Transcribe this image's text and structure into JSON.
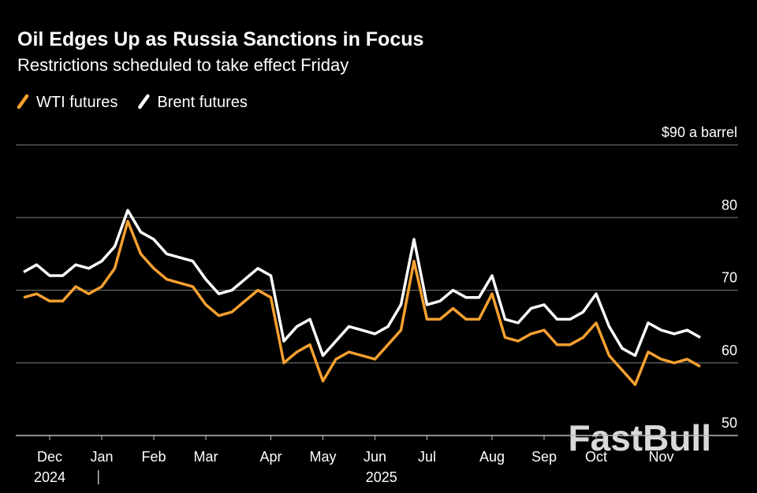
{
  "chart_data": {
    "type": "line",
    "title": "Oil Edges Up as Russia Sanctions in Focus",
    "subtitle": "Restrictions scheduled to take effect Friday",
    "categories": [
      null,
      null,
      "Dec",
      null,
      null,
      null,
      "Jan",
      null,
      null,
      null,
      "Feb",
      null,
      null,
      null,
      "Mar",
      null,
      null,
      null,
      null,
      "Apr",
      null,
      null,
      null,
      "May",
      null,
      null,
      null,
      "Jun",
      null,
      null,
      null,
      "Jul",
      null,
      null,
      null,
      null,
      "Aug",
      null,
      null,
      null,
      "Sep",
      null,
      null,
      null,
      "Oct",
      null,
      null,
      null,
      null,
      "Nov",
      null,
      null,
      null
    ],
    "year_groups": [
      {
        "label": "2024",
        "months": [
          "Dec"
        ]
      },
      {
        "label": "2025",
        "months": [
          "Jan",
          "Feb",
          "Mar",
          "Apr",
          "May",
          "Jun",
          "Jul",
          "Aug",
          "Sep",
          "Oct",
          "Nov"
        ]
      }
    ],
    "series": [
      {
        "name": "WTI futures",
        "color": "#f5a030",
        "values": [
          69,
          69.5,
          68.5,
          68.5,
          70.5,
          69.5,
          70.5,
          73,
          79.5,
          75,
          73,
          71.5,
          71,
          70.5,
          68,
          66.5,
          67,
          68.5,
          70,
          69,
          60,
          61.5,
          62.5,
          57.5,
          60.5,
          61.5,
          61,
          60.5,
          62.5,
          64.5,
          74,
          66,
          66,
          67.5,
          66,
          66,
          69.5,
          63.5,
          63,
          64,
          64.5,
          62.5,
          62.5,
          63.5,
          65.5,
          61,
          59,
          57,
          61.5,
          60.5,
          60,
          60.5,
          59.5
        ]
      },
      {
        "name": "Brent futures",
        "color": "#ffffff",
        "values": [
          72.5,
          73.5,
          72,
          72,
          73.5,
          73,
          74,
          76,
          81,
          78,
          77,
          75,
          74.5,
          74,
          71.5,
          69.5,
          70,
          71.5,
          73,
          72,
          63,
          65,
          66,
          61,
          63,
          65,
          64.5,
          64,
          65,
          68,
          77,
          68,
          68.5,
          70,
          69,
          69,
          72,
          66,
          65.5,
          67.5,
          68,
          66,
          66,
          67,
          69.5,
          65,
          62,
          61,
          65.5,
          64.5,
          64,
          64.5,
          63.5
        ]
      }
    ],
    "ylim": [
      50,
      90
    ],
    "yticks": [
      50,
      60,
      70,
      80,
      {
        "value": 90,
        "label": "$90 a barrel"
      }
    ],
    "grid": true,
    "watermark": "FastBull"
  }
}
